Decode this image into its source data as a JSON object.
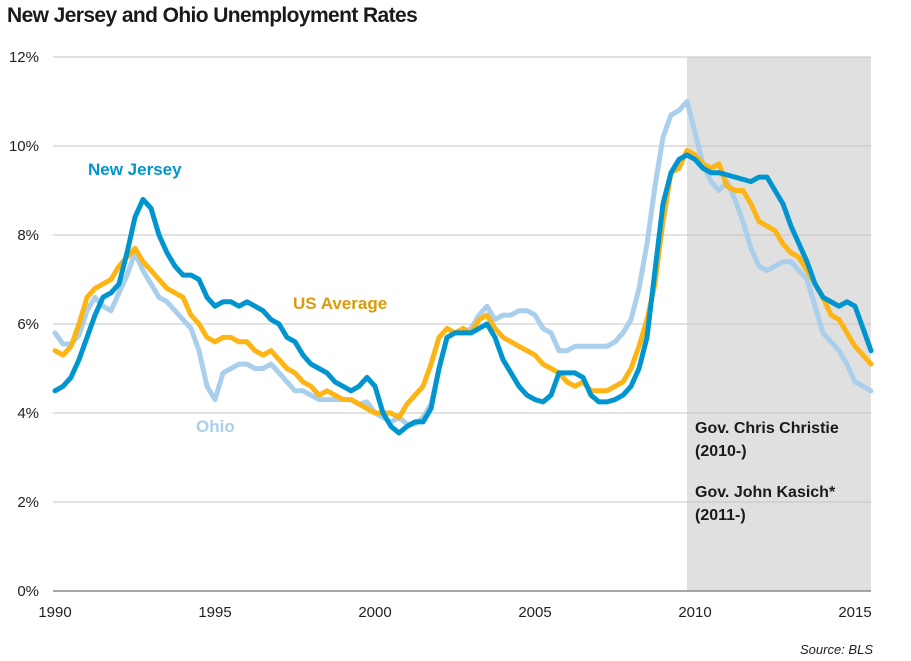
{
  "chart_data": {
    "type": "line",
    "title": "New Jersey and Ohio Unemployment Rates",
    "xlabel": "",
    "ylabel": "",
    "xlim": [
      1990,
      2015.5
    ],
    "ylim": [
      0,
      12
    ],
    "x_ticks": [
      1990,
      1995,
      2000,
      2005,
      2010,
      2015
    ],
    "x_tick_labels": [
      "1990",
      "1995",
      "2000",
      "2005",
      "2010",
      "2015"
    ],
    "y_ticks": [
      0,
      2,
      4,
      6,
      8,
      10,
      12
    ],
    "y_tick_labels": [
      "0%",
      "2%",
      "4%",
      "6%",
      "8%",
      "10%",
      "12%"
    ],
    "grid": "horizontal",
    "shaded_region": {
      "x_start": 2009.75,
      "x_end": 2015.5,
      "color": "#e0e0e0",
      "annotations": [
        {
          "line1": "Gov. Chris Christie",
          "line2": "(2010-)"
        },
        {
          "line1": "Gov. John Kasich*",
          "line2": "(2011-)"
        }
      ]
    },
    "series": [
      {
        "name": "Ohio",
        "label": "Ohio",
        "color": "#a9cfec",
        "x": [
          1990.0,
          1990.25,
          1990.5,
          1990.75,
          1991.0,
          1991.25,
          1991.5,
          1991.75,
          1992.0,
          1992.25,
          1992.5,
          1992.75,
          1993.0,
          1993.25,
          1993.5,
          1993.75,
          1994.0,
          1994.25,
          1994.5,
          1994.75,
          1995.0,
          1995.25,
          1995.5,
          1995.75,
          1996.0,
          1996.25,
          1996.5,
          1996.75,
          1997.0,
          1997.25,
          1997.5,
          1997.75,
          1998.0,
          1998.25,
          1998.5,
          1998.75,
          1999.0,
          1999.25,
          1999.5,
          1999.75,
          2000.0,
          2000.25,
          2000.5,
          2000.75,
          2001.0,
          2001.25,
          2001.5,
          2001.75,
          2002.0,
          2002.25,
          2002.5,
          2002.75,
          2003.0,
          2003.25,
          2003.5,
          2003.75,
          2004.0,
          2004.25,
          2004.5,
          2004.75,
          2005.0,
          2005.25,
          2005.5,
          2005.75,
          2006.0,
          2006.25,
          2006.5,
          2006.75,
          2007.0,
          2007.25,
          2007.5,
          2007.75,
          2008.0,
          2008.25,
          2008.5,
          2008.75,
          2009.0,
          2009.25,
          2009.5,
          2009.75,
          2010.0,
          2010.25,
          2010.5,
          2010.75,
          2011.0,
          2011.25,
          2011.5,
          2011.75,
          2012.0,
          2012.25,
          2012.5,
          2012.75,
          2013.0,
          2013.25,
          2013.5,
          2013.75,
          2014.0,
          2014.25,
          2014.5,
          2014.75,
          2015.0,
          2015.25,
          2015.5
        ],
        "values": [
          5.8,
          5.55,
          5.55,
          5.75,
          6.3,
          6.6,
          6.4,
          6.3,
          6.7,
          7.1,
          7.6,
          7.2,
          6.9,
          6.6,
          6.5,
          6.3,
          6.1,
          5.9,
          5.4,
          4.6,
          4.3,
          4.9,
          5.0,
          5.1,
          5.1,
          5.0,
          5.0,
          5.1,
          4.9,
          4.7,
          4.5,
          4.5,
          4.4,
          4.3,
          4.3,
          4.3,
          4.3,
          4.3,
          4.2,
          4.25,
          4.0,
          3.9,
          3.8,
          3.9,
          3.75,
          3.75,
          3.9,
          4.2,
          5.0,
          5.7,
          5.8,
          5.8,
          5.9,
          6.2,
          6.4,
          6.1,
          6.2,
          6.2,
          6.3,
          6.3,
          6.2,
          5.9,
          5.8,
          5.4,
          5.4,
          5.5,
          5.5,
          5.5,
          5.5,
          5.5,
          5.6,
          5.8,
          6.1,
          6.8,
          7.8,
          9.1,
          10.2,
          10.7,
          10.8,
          11.0,
          10.3,
          9.6,
          9.2,
          9.0,
          9.2,
          8.8,
          8.3,
          7.7,
          7.3,
          7.2,
          7.3,
          7.4,
          7.4,
          7.2,
          7.0,
          6.4,
          5.8,
          5.6,
          5.4,
          5.1,
          4.7,
          4.6,
          4.5
        ]
      },
      {
        "name": "US Average",
        "label": "US Average",
        "color": "#fdb515",
        "x": [
          1990.0,
          1990.25,
          1990.5,
          1990.75,
          1991.0,
          1991.25,
          1991.5,
          1991.75,
          1992.0,
          1992.25,
          1992.5,
          1992.75,
          1993.0,
          1993.25,
          1993.5,
          1993.75,
          1994.0,
          1994.25,
          1994.5,
          1994.75,
          1995.0,
          1995.25,
          1995.5,
          1995.75,
          1996.0,
          1996.25,
          1996.5,
          1996.75,
          1997.0,
          1997.25,
          1997.5,
          1997.75,
          1998.0,
          1998.25,
          1998.5,
          1998.75,
          1999.0,
          1999.25,
          1999.5,
          1999.75,
          2000.0,
          2000.25,
          2000.5,
          2000.75,
          2001.0,
          2001.25,
          2001.5,
          2001.75,
          2002.0,
          2002.25,
          2002.5,
          2002.75,
          2003.0,
          2003.25,
          2003.5,
          2003.75,
          2004.0,
          2004.25,
          2004.5,
          2004.75,
          2005.0,
          2005.25,
          2005.5,
          2005.75,
          2006.0,
          2006.25,
          2006.5,
          2006.75,
          2007.0,
          2007.25,
          2007.5,
          2007.75,
          2008.0,
          2008.25,
          2008.5,
          2008.75,
          2009.0,
          2009.25,
          2009.5,
          2009.75,
          2010.0,
          2010.25,
          2010.5,
          2010.75,
          2011.0,
          2011.25,
          2011.5,
          2011.75,
          2012.0,
          2012.25,
          2012.5,
          2012.75,
          2013.0,
          2013.25,
          2013.5,
          2013.75,
          2014.0,
          2014.25,
          2014.5,
          2014.75,
          2015.0,
          2015.25,
          2015.5
        ],
        "values": [
          5.4,
          5.3,
          5.5,
          6.0,
          6.6,
          6.8,
          6.9,
          7.0,
          7.3,
          7.5,
          7.7,
          7.4,
          7.2,
          7.0,
          6.8,
          6.7,
          6.6,
          6.2,
          6.0,
          5.7,
          5.6,
          5.7,
          5.7,
          5.6,
          5.6,
          5.4,
          5.3,
          5.4,
          5.2,
          5.0,
          4.9,
          4.7,
          4.6,
          4.4,
          4.5,
          4.4,
          4.3,
          4.3,
          4.2,
          4.1,
          4.0,
          4.0,
          4.0,
          3.9,
          4.2,
          4.4,
          4.6,
          5.1,
          5.7,
          5.9,
          5.8,
          5.9,
          5.8,
          6.1,
          6.2,
          5.9,
          5.7,
          5.6,
          5.5,
          5.4,
          5.3,
          5.1,
          5.0,
          4.9,
          4.7,
          4.6,
          4.7,
          4.5,
          4.5,
          4.5,
          4.6,
          4.7,
          5.0,
          5.5,
          6.1,
          6.9,
          8.3,
          9.4,
          9.5,
          9.9,
          9.8,
          9.6,
          9.5,
          9.6,
          9.1,
          9.0,
          9.0,
          8.7,
          8.3,
          8.2,
          8.1,
          7.8,
          7.6,
          7.5,
          7.2,
          6.9,
          6.6,
          6.2,
          6.1,
          5.8,
          5.5,
          5.3,
          5.1
        ]
      },
      {
        "name": "New Jersey",
        "label": "New Jersey",
        "color": "#0095cf",
        "x": [
          1990.0,
          1990.25,
          1990.5,
          1990.75,
          1991.0,
          1991.25,
          1991.5,
          1991.75,
          1992.0,
          1992.25,
          1992.5,
          1992.75,
          1993.0,
          1993.25,
          1993.5,
          1993.75,
          1994.0,
          1994.25,
          1994.5,
          1994.75,
          1995.0,
          1995.25,
          1995.5,
          1995.75,
          1996.0,
          1996.25,
          1996.5,
          1996.75,
          1997.0,
          1997.25,
          1997.5,
          1997.75,
          1998.0,
          1998.25,
          1998.5,
          1998.75,
          1999.0,
          1999.25,
          1999.5,
          1999.75,
          2000.0,
          2000.25,
          2000.5,
          2000.75,
          2001.0,
          2001.25,
          2001.5,
          2001.75,
          2002.0,
          2002.25,
          2002.5,
          2002.75,
          2003.0,
          2003.25,
          2003.5,
          2003.75,
          2004.0,
          2004.25,
          2004.5,
          2004.75,
          2005.0,
          2005.25,
          2005.5,
          2005.75,
          2006.0,
          2006.25,
          2006.5,
          2006.75,
          2007.0,
          2007.25,
          2007.5,
          2007.75,
          2008.0,
          2008.25,
          2008.5,
          2008.75,
          2009.0,
          2009.25,
          2009.5,
          2009.75,
          2010.0,
          2010.25,
          2010.5,
          2010.75,
          2011.0,
          2011.25,
          2011.5,
          2011.75,
          2012.0,
          2012.25,
          2012.5,
          2012.75,
          2013.0,
          2013.25,
          2013.5,
          2013.75,
          2014.0,
          2014.25,
          2014.5,
          2014.75,
          2015.0,
          2015.25,
          2015.5
        ],
        "values": [
          4.5,
          4.6,
          4.8,
          5.2,
          5.7,
          6.2,
          6.6,
          6.7,
          6.9,
          7.6,
          8.4,
          8.8,
          8.6,
          8.0,
          7.6,
          7.3,
          7.1,
          7.1,
          7.0,
          6.6,
          6.4,
          6.5,
          6.5,
          6.4,
          6.5,
          6.4,
          6.3,
          6.1,
          6.0,
          5.7,
          5.6,
          5.3,
          5.1,
          5.0,
          4.9,
          4.7,
          4.6,
          4.5,
          4.6,
          4.8,
          4.6,
          4.0,
          3.7,
          3.55,
          3.7,
          3.8,
          3.8,
          4.1,
          5.0,
          5.7,
          5.8,
          5.8,
          5.8,
          5.9,
          6.0,
          5.7,
          5.2,
          4.9,
          4.6,
          4.4,
          4.3,
          4.25,
          4.4,
          4.9,
          4.9,
          4.9,
          4.8,
          4.4,
          4.25,
          4.25,
          4.3,
          4.4,
          4.6,
          5.0,
          5.7,
          7.2,
          8.7,
          9.4,
          9.7,
          9.8,
          9.7,
          9.5,
          9.4,
          9.4,
          9.35,
          9.3,
          9.25,
          9.2,
          9.3,
          9.3,
          9.0,
          8.7,
          8.2,
          7.8,
          7.4,
          6.9,
          6.6,
          6.5,
          6.4,
          6.5,
          6.4,
          5.9,
          5.4
        ]
      }
    ],
    "legend": "inline labels",
    "series_labels": {
      "new_jersey": "New Jersey",
      "us_average": "US Average",
      "ohio": "Ohio"
    },
    "source": "Source: BLS"
  },
  "colors": {
    "new_jersey": "#0095cf",
    "us_average": "#fdb515",
    "us_average_label": "#d99b0b",
    "ohio": "#a9cfec",
    "shade": "#e0e0e0",
    "grid": "#c4c4c4",
    "axis": "#888888"
  }
}
